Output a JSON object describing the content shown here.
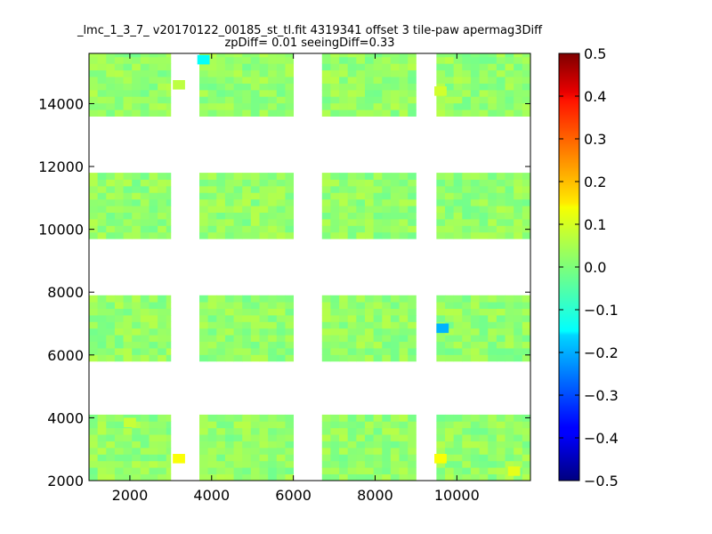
{
  "chart_data": {
    "type": "heatmap",
    "title": "_lmc_1_3_7_ v20170122_00185_st_tl.fit 4319341 offset 3 tile-paw apermag3Diff",
    "subtitle": "zpDiff= 0.01 seeingDiff=0.33",
    "xlabel": "",
    "ylabel": "",
    "xlim": [
      1000,
      11800
    ],
    "ylim": [
      2000,
      15600
    ],
    "x_ticks": [
      2000,
      4000,
      6000,
      8000,
      10000
    ],
    "x_tick_labels": [
      "2000",
      "4000",
      "6000",
      "8000",
      "10000"
    ],
    "y_ticks": [
      2000,
      4000,
      6000,
      8000,
      10000,
      12000,
      14000
    ],
    "y_tick_labels": [
      "2000",
      "4000",
      "6000",
      "8000",
      "10000",
      "12000",
      "14000"
    ],
    "colorbar": {
      "min": -0.5,
      "max": 0.5,
      "colormap": "jet",
      "ticks": [
        0.5,
        0.4,
        0.3,
        0.2,
        0.1,
        0.0,
        -0.1,
        -0.2,
        -0.3,
        -0.4,
        -0.5
      ],
      "tick_labels": [
        "0.5",
        "0.4",
        "0.3",
        "0.2",
        "0.1",
        "0.0",
        "−0.1",
        "−0.2",
        "−0.3",
        "−0.4",
        "−0.5"
      ]
    },
    "typical_value": 0.02,
    "detectors": [
      {
        "x": [
          1000,
          3000
        ],
        "y": [
          13600,
          15600
        ]
      },
      {
        "x": [
          3700,
          6000
        ],
        "y": [
          13600,
          15600
        ]
      },
      {
        "x": [
          6700,
          9000
        ],
        "y": [
          13600,
          15600
        ]
      },
      {
        "x": [
          9500,
          11800
        ],
        "y": [
          13600,
          15600
        ]
      },
      {
        "x": [
          1000,
          3000
        ],
        "y": [
          9700,
          11800
        ]
      },
      {
        "x": [
          3700,
          6000
        ],
        "y": [
          9700,
          11800
        ]
      },
      {
        "x": [
          6700,
          9000
        ],
        "y": [
          9700,
          11800
        ]
      },
      {
        "x": [
          9500,
          11800
        ],
        "y": [
          9700,
          11800
        ]
      },
      {
        "x": [
          1000,
          3000
        ],
        "y": [
          5800,
          7900
        ]
      },
      {
        "x": [
          3700,
          6000
        ],
        "y": [
          5800,
          7900
        ]
      },
      {
        "x": [
          6700,
          9000
        ],
        "y": [
          5800,
          7900
        ]
      },
      {
        "x": [
          9500,
          11800
        ],
        "y": [
          5800,
          7900
        ]
      },
      {
        "x": [
          1000,
          3000
        ],
        "y": [
          2000,
          4100
        ]
      },
      {
        "x": [
          3700,
          6000
        ],
        "y": [
          2000,
          4100
        ]
      },
      {
        "x": [
          6700,
          9000
        ],
        "y": [
          2000,
          4100
        ]
      },
      {
        "x": [
          9500,
          11800
        ],
        "y": [
          2000,
          4100
        ]
      }
    ],
    "notable_cells": [
      {
        "x": 3800,
        "y": 15400,
        "value": -0.12
      },
      {
        "x": 9650,
        "y": 6850,
        "value": -0.2
      },
      {
        "x": 3200,
        "y": 2700,
        "value": 0.12
      },
      {
        "x": 9600,
        "y": 2700,
        "value": 0.12
      },
      {
        "x": 2000,
        "y": 3850,
        "value": 0.07
      },
      {
        "x": 9600,
        "y": 14400,
        "value": 0.08
      },
      {
        "x": 3200,
        "y": 14600,
        "value": 0.06
      },
      {
        "x": 11400,
        "y": 2300,
        "value": 0.1
      }
    ]
  }
}
